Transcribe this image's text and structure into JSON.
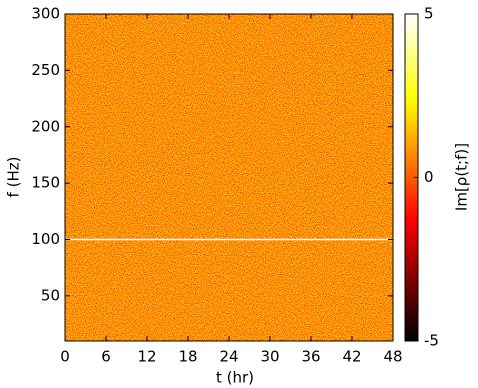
{
  "chart_data": {
    "type": "heatmap",
    "x_label": "t (hr)",
    "y_label": "f (Hz)",
    "colorbar_label": "Im[ρ(t;f)]",
    "xlim": [
      0,
      48
    ],
    "xticks": [
      0,
      6,
      12,
      18,
      24,
      30,
      36,
      42,
      48
    ],
    "ylim": [
      10,
      300
    ],
    "yticks": [
      50,
      100,
      150,
      200,
      250,
      300
    ],
    "clim": [
      -5,
      5
    ],
    "cticks": [
      -5,
      0,
      5
    ],
    "colormap": "hot",
    "hline": 100
  }
}
